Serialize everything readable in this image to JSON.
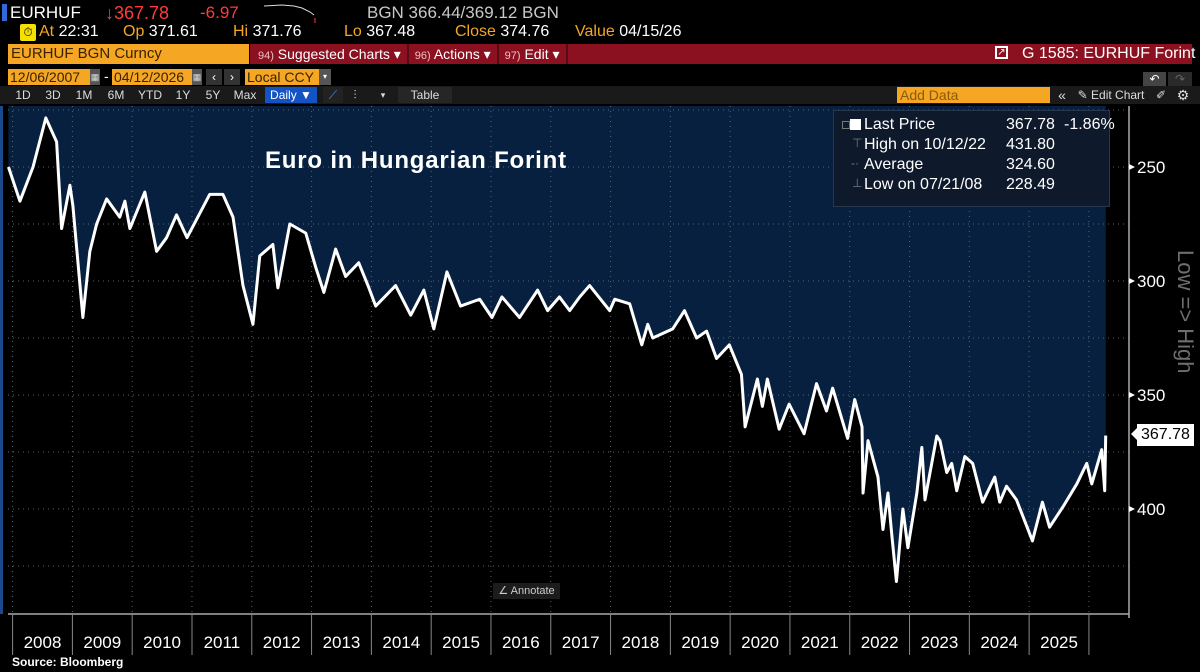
{
  "quote": {
    "ticker": "EURHUF",
    "last": "↓367.78",
    "change": "-6.97",
    "bid_ask": "BGN 366.44/369.12 BGN",
    "at_label": "At",
    "at": "22:31",
    "op_label": "Op",
    "op": "371.61",
    "hi_label": "Hi",
    "hi": "371.76",
    "lo_label": "Lo",
    "lo": "367.48",
    "close_label": "Close",
    "close": "374.76",
    "value_label": "Value",
    "value": "04/15/26"
  },
  "toolbar": {
    "security": "EURHUF BGN Curncy",
    "menus": [
      {
        "num": "94)",
        "label": "Suggested Charts ▾"
      },
      {
        "num": "96)",
        "label": "Actions ▾"
      },
      {
        "num": "97)",
        "label": "Edit ▾"
      }
    ],
    "page_title": "G 1585: EURHUF Forint",
    "start_date": "12/06/2007",
    "date_sep": "-",
    "end_date": "04/12/2026",
    "currency": "Local CCY",
    "periods": [
      "1D",
      "3D",
      "1M",
      "6M",
      "YTD",
      "1Y",
      "5Y",
      "Max"
    ],
    "frequency": "Daily ▼",
    "table_label": "Table",
    "add_data_placeholder": "Add Data",
    "collapse": "«",
    "edit_chart": "Edit Chart"
  },
  "colors": {
    "accent_orange": "#f5a623",
    "header_red": "#8b1020",
    "plot_blue": "#08203f",
    "down_red": "#ff3b3b"
  },
  "chart_data": {
    "type": "area",
    "title": "Euro in Hungarian Forint",
    "y_axis_label": "Low => High",
    "y_inverted": true,
    "ylim": [
      225,
      450
    ],
    "y_ticks": [
      250,
      300,
      350,
      400
    ],
    "x_ticks": [
      "2008",
      "2009",
      "2010",
      "2011",
      "2012",
      "2013",
      "2014",
      "2015",
      "2016",
      "2017",
      "2018",
      "2019",
      "2020",
      "2021",
      "2022",
      "2023",
      "2024",
      "2025"
    ],
    "grid": true,
    "last_value_label": "367.78",
    "legend": {
      "rows": [
        {
          "label": "Last Price",
          "value": "367.78",
          "extra": "-1.86%"
        },
        {
          "label": "High on 10/12/22",
          "value": "431.80"
        },
        {
          "label": "Average",
          "value": "324.60"
        },
        {
          "label": "Low on 07/21/08",
          "value": "228.49"
        }
      ]
    },
    "series": [
      {
        "points": [
          [
            "2007-12-06",
            250
          ],
          [
            "2008-02-15",
            265
          ],
          [
            "2008-05-04",
            250
          ],
          [
            "2008-07-21",
            228.49
          ],
          [
            "2008-09-26",
            239
          ],
          [
            "2008-10-26",
            277
          ],
          [
            "2008-12-16",
            258
          ],
          [
            "2009-01-04",
            267
          ],
          [
            "2009-03-04",
            316
          ],
          [
            "2009-04-16",
            287
          ],
          [
            "2009-05-27",
            275
          ],
          [
            "2009-07-27",
            264
          ],
          [
            "2009-10-16",
            272
          ],
          [
            "2009-11-17",
            265
          ],
          [
            "2009-12-17",
            277
          ],
          [
            "2010-03-17",
            261
          ],
          [
            "2010-05-28",
            287
          ],
          [
            "2010-07-28",
            281
          ],
          [
            "2010-09-28",
            271
          ],
          [
            "2010-12-01",
            281
          ],
          [
            "2011-04-18",
            262
          ],
          [
            "2011-07-07",
            262
          ],
          [
            "2011-09-08",
            272
          ],
          [
            "2011-11-08",
            302
          ],
          [
            "2012-01-08",
            319
          ],
          [
            "2012-02-19",
            289
          ],
          [
            "2012-05-08",
            284
          ],
          [
            "2012-06-08",
            303
          ],
          [
            "2012-08-20",
            275
          ],
          [
            "2012-11-26",
            279
          ],
          [
            "2013-01-26",
            294
          ],
          [
            "2013-03-15",
            305
          ],
          [
            "2013-05-26",
            286
          ],
          [
            "2013-07-26",
            298
          ],
          [
            "2013-10-15",
            292
          ],
          [
            "2013-12-16",
            303
          ],
          [
            "2014-01-27",
            311
          ],
          [
            "2014-05-27",
            302
          ],
          [
            "2014-08-28",
            315
          ],
          [
            "2014-11-17",
            304
          ],
          [
            "2015-01-17",
            321
          ],
          [
            "2015-04-06",
            296
          ],
          [
            "2015-06-28",
            311
          ],
          [
            "2015-10-23",
            308
          ],
          [
            "2016-01-07",
            316
          ],
          [
            "2016-03-07",
            307
          ],
          [
            "2016-06-23",
            316
          ],
          [
            "2016-10-12",
            304
          ],
          [
            "2016-12-12",
            313
          ],
          [
            "2017-02-23",
            307
          ],
          [
            "2017-04-25",
            313
          ],
          [
            "2017-06-25",
            307
          ],
          [
            "2017-08-25",
            302
          ],
          [
            "2017-12-26",
            313
          ],
          [
            "2018-01-26",
            308
          ],
          [
            "2018-04-26",
            310
          ],
          [
            "2018-07-09",
            328
          ],
          [
            "2018-08-15",
            319
          ],
          [
            "2018-09-15",
            325
          ],
          [
            "2019-01-15",
            321
          ],
          [
            "2019-03-26",
            313
          ],
          [
            "2019-06-09",
            325
          ],
          [
            "2019-08-09",
            322
          ],
          [
            "2019-10-09",
            334
          ],
          [
            "2019-12-26",
            328
          ],
          [
            "2020-03-09",
            341
          ],
          [
            "2020-04-01",
            364
          ],
          [
            "2020-06-15",
            343
          ],
          [
            "2020-07-15",
            355
          ],
          [
            "2020-08-15",
            343
          ],
          [
            "2020-10-26",
            365
          ],
          [
            "2020-12-26",
            354
          ],
          [
            "2021-03-26",
            367
          ],
          [
            "2021-06-11",
            345
          ],
          [
            "2021-08-11",
            357
          ],
          [
            "2021-09-18",
            347
          ],
          [
            "2021-12-18",
            369
          ],
          [
            "2022-02-01",
            352
          ],
          [
            "2022-03-15",
            364
          ],
          [
            "2022-03-21",
            393
          ],
          [
            "2022-04-21",
            370
          ],
          [
            "2022-06-21",
            386
          ],
          [
            "2022-07-21",
            409
          ],
          [
            "2022-08-21",
            393
          ],
          [
            "2022-09-15",
            412
          ],
          [
            "2022-10-12",
            431.8
          ],
          [
            "2022-11-21",
            400
          ],
          [
            "2022-12-21",
            417
          ],
          [
            "2023-02-15",
            393
          ],
          [
            "2023-03-15",
            373
          ],
          [
            "2023-04-04",
            396
          ],
          [
            "2023-06-15",
            368
          ],
          [
            "2023-07-04",
            370
          ],
          [
            "2023-08-15",
            384
          ],
          [
            "2023-09-15",
            380
          ],
          [
            "2023-10-15",
            392
          ],
          [
            "2023-12-04",
            377
          ],
          [
            "2024-01-21",
            380
          ],
          [
            "2024-03-21",
            397
          ],
          [
            "2024-06-04",
            386
          ],
          [
            "2024-07-04",
            397
          ],
          [
            "2024-08-15",
            390
          ],
          [
            "2024-10-15",
            396
          ],
          [
            "2025-01-21",
            414
          ],
          [
            "2025-03-21",
            397
          ],
          [
            "2025-05-04",
            408
          ],
          [
            "2025-07-25",
            399
          ],
          [
            "2025-10-18",
            389
          ],
          [
            "2025-12-18",
            380
          ],
          [
            "2026-01-18",
            389
          ],
          [
            "2026-03-18",
            374
          ],
          [
            "2026-04-06",
            392
          ],
          [
            "2026-04-12",
            367.78
          ]
        ]
      }
    ]
  },
  "annotate_label": "Annotate",
  "source": "Source: Bloomberg"
}
